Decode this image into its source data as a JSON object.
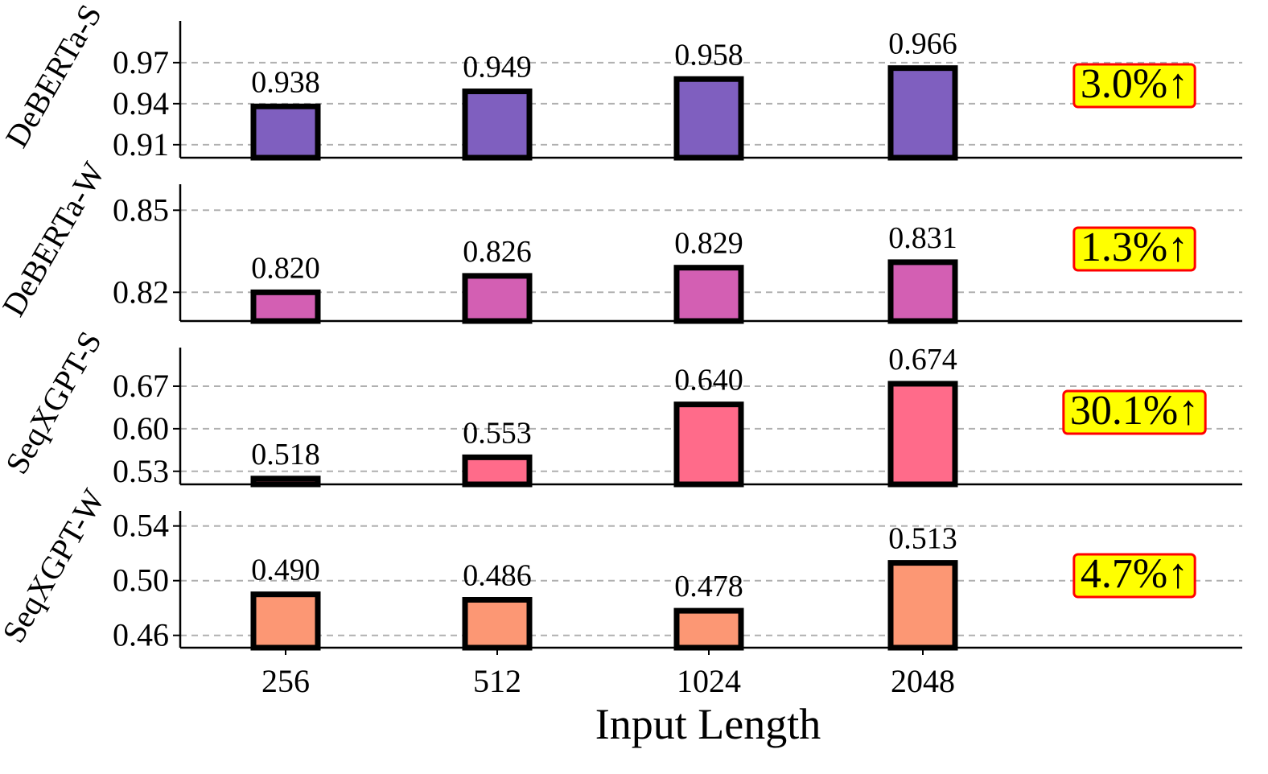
{
  "chart_data": {
    "type": "bar",
    "categories": [
      "256",
      "512",
      "1024",
      "2048"
    ],
    "xlabel": "Input Length",
    "grid": "horizontal dashed",
    "panels": [
      {
        "ylabel": "DeBERTa-S",
        "values": [
          0.938,
          0.949,
          0.958,
          0.966
        ],
        "value_labels": [
          "0.938",
          "0.949",
          "0.958",
          "0.966"
        ],
        "yticks": [
          0.91,
          0.94,
          0.97
        ],
        "ytick_labels": [
          "0.91",
          "0.94",
          "0.97"
        ],
        "ylim": [
          0.9005,
          1.0005
        ],
        "color": "#7f5fbf",
        "improvement": "3.0%↑"
      },
      {
        "ylabel": "DeBERTa-W",
        "values": [
          0.82,
          0.826,
          0.829,
          0.831
        ],
        "value_labels": [
          "0.820",
          "0.826",
          "0.829",
          "0.831"
        ],
        "yticks": [
          0.82,
          0.85
        ],
        "ytick_labels": [
          "0.82",
          "0.85"
        ],
        "ylim": [
          0.8095,
          0.8595
        ],
        "color": "#d35fb3",
        "improvement": "1.3%↑"
      },
      {
        "ylabel": "SeqXGPT-S",
        "values": [
          0.518,
          0.553,
          0.64,
          0.674
        ],
        "value_labels": [
          "0.518",
          "0.553",
          "0.640",
          "0.674"
        ],
        "yticks": [
          0.53,
          0.6,
          0.67
        ],
        "ytick_labels": [
          "0.53",
          "0.60",
          "0.67"
        ],
        "ylim": [
          0.5085,
          0.7335
        ],
        "color": "#ff6b8a",
        "improvement": "30.1%↑"
      },
      {
        "ylabel": "SeqXGPT-W",
        "values": [
          0.49,
          0.486,
          0.478,
          0.513
        ],
        "value_labels": [
          "0.490",
          "0.486",
          "0.478",
          "0.513"
        ],
        "yticks": [
          0.46,
          0.5,
          0.54
        ],
        "ytick_labels": [
          "0.46",
          "0.50",
          "0.54"
        ],
        "ylim": [
          0.451,
          0.551
        ],
        "color": "#fc9774",
        "improvement": "4.7%↑"
      }
    ],
    "badge_fill": "#ffff00",
    "badge_border": "#ff0000",
    "bar_edge": "#000000",
    "grid_color": "#b0b0b0"
  }
}
